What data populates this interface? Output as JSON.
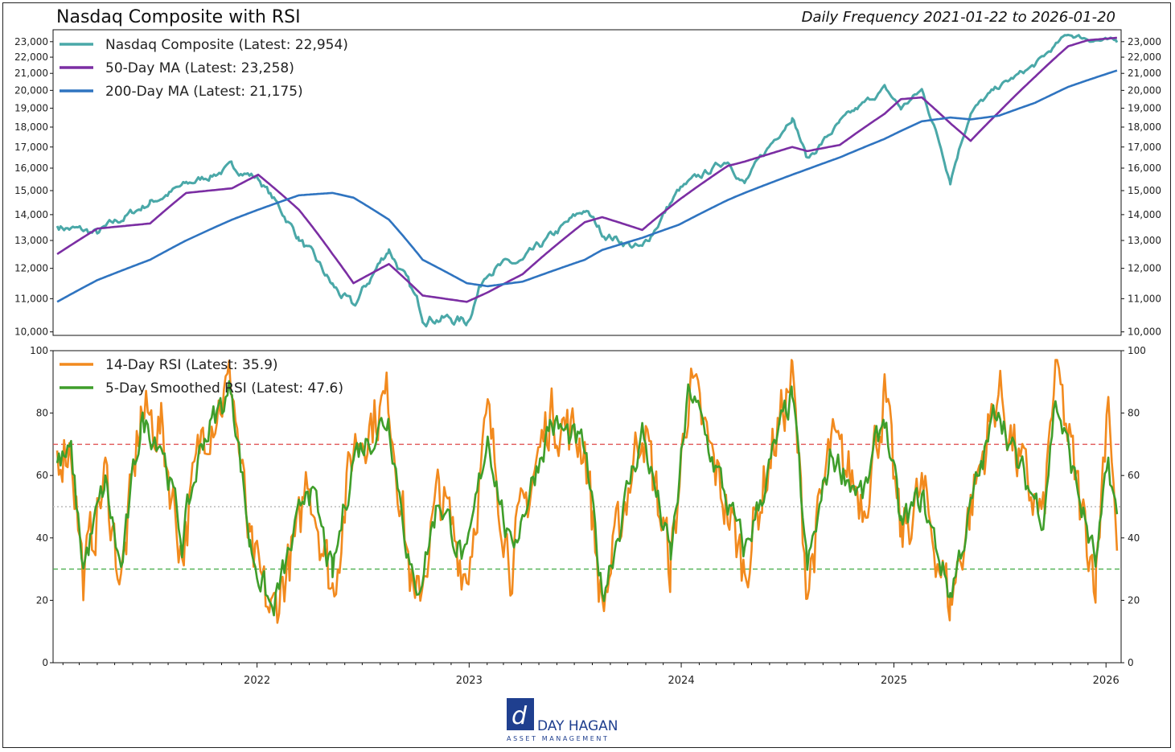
{
  "header": {
    "title": "Nasdaq Composite with RSI",
    "subtitle": "Daily Frequency 2021-01-22 to 2026-01-20"
  },
  "logo": {
    "name": "DAY HAGAN",
    "tagline": "ASSET MANAGEMENT",
    "color": "#1f3f8f"
  },
  "chart_data": [
    {
      "type": "line",
      "title": "Nasdaq Composite with RSI",
      "ylim": [
        9900,
        23800
      ],
      "yticks": [
        10000,
        11000,
        12000,
        13000,
        14000,
        15000,
        16000,
        17000,
        18000,
        19000,
        20000,
        21000,
        22000,
        23000
      ],
      "ytick_labels": [
        "10,000",
        "11,000",
        "12,000",
        "13,000",
        "14,000",
        "15,000",
        "16,000",
        "17,000",
        "18,000",
        "19,000",
        "20,000",
        "21,000",
        "22,000",
        "23,000"
      ],
      "legend_position": "top-left",
      "grid": false,
      "x": [
        "2021-01-22",
        "2021-04-01",
        "2021-07-01",
        "2021-09-01",
        "2021-11-19",
        "2022-01-03",
        "2022-03-14",
        "2022-05-11",
        "2022-06-16",
        "2022-08-16",
        "2022-10-13",
        "2022-12-28",
        "2023-02-02",
        "2023-04-03",
        "2023-07-19",
        "2023-08-18",
        "2023-10-26",
        "2023-12-28",
        "2024-03-21",
        "2024-04-19",
        "2024-07-10",
        "2024-08-05",
        "2024-09-30",
        "2024-12-16",
        "2025-01-13",
        "2025-02-18",
        "2025-04-08",
        "2025-05-13",
        "2025-07-01",
        "2025-09-01",
        "2025-10-28",
        "2025-12-01",
        "2026-01-20"
      ],
      "series": [
        {
          "name": "Nasdaq Composite (Latest: 22,954)",
          "color": "#4aa8a8",
          "values": [
            13550,
            13250,
            14500,
            15250,
            16050,
            15550,
            13100,
            11400,
            10700,
            12700,
            10500,
            10300,
            12000,
            12200,
            14200,
            13300,
            12650,
            15000,
            16400,
            15300,
            18600,
            16400,
            18200,
            20100,
            19000,
            20000,
            15500,
            18800,
            20200,
            21500,
            23500,
            23200,
            22954
          ]
        },
        {
          "name": "50-Day MA (Latest: 23,258)",
          "color": "#7b2ea3",
          "values": [
            12500,
            13450,
            13650,
            14900,
            15100,
            15700,
            14200,
            12500,
            11500,
            12150,
            11100,
            10900,
            11200,
            11800,
            13700,
            13900,
            13400,
            14600,
            16100,
            16300,
            17000,
            16800,
            17100,
            18700,
            19500,
            19600,
            18200,
            17300,
            18800,
            20800,
            22700,
            23100,
            23258
          ]
        },
        {
          "name": "200-Day MA (Latest: 21,175)",
          "color": "#2f74c0",
          "values": [
            10900,
            11600,
            12300,
            13000,
            13800,
            14200,
            14800,
            14900,
            14700,
            13800,
            12300,
            11500,
            11400,
            11550,
            12300,
            12650,
            13100,
            13600,
            14600,
            14900,
            15700,
            15950,
            16500,
            17400,
            17800,
            18300,
            18500,
            18400,
            18600,
            19300,
            20200,
            20600,
            21175
          ]
        }
      ]
    },
    {
      "type": "line",
      "ylim": [
        0,
        100
      ],
      "yticks": [
        0,
        20,
        40,
        60,
        80,
        100
      ],
      "ytick_labels": [
        "0",
        "20",
        "40",
        "60",
        "80",
        "100"
      ],
      "xtick_labels": [
        "2022",
        "2023",
        "2024",
        "2025",
        "2026"
      ],
      "xtick_dates": [
        "2022-01-01",
        "2023-01-01",
        "2024-01-01",
        "2025-01-01",
        "2026-01-01"
      ],
      "reference_lines": [
        {
          "value": 70,
          "color": "#e05555",
          "style": "dashed"
        },
        {
          "value": 50,
          "color": "#bbbbbb",
          "style": "dotted"
        },
        {
          "value": 30,
          "color": "#4caf50",
          "style": "dashed"
        }
      ],
      "legend_position": "top-left",
      "grid": false,
      "x": [
        "2021-01-22",
        "2021-02-15",
        "2021-03-08",
        "2021-04-15",
        "2021-05-12",
        "2021-06-15",
        "2021-07-20",
        "2021-08-25",
        "2021-09-30",
        "2021-11-19",
        "2021-12-20",
        "2022-01-27",
        "2022-03-14",
        "2022-03-29",
        "2022-05-11",
        "2022-06-16",
        "2022-08-16",
        "2022-09-30",
        "2022-11-10",
        "2022-12-28",
        "2023-02-02",
        "2023-03-13",
        "2023-05-20",
        "2023-07-19",
        "2023-08-18",
        "2023-10-26",
        "2023-12-14",
        "2024-01-15",
        "2024-04-19",
        "2024-05-28",
        "2024-07-10",
        "2024-08-05",
        "2024-09-15",
        "2024-11-11",
        "2024-12-16",
        "2025-01-13",
        "2025-02-18",
        "2025-04-08",
        "2025-05-13",
        "2025-06-30",
        "2025-08-01",
        "2025-09-15",
        "2025-10-06",
        "2025-11-20",
        "2025-12-15",
        "2026-01-05",
        "2026-01-20"
      ],
      "series": [
        {
          "name": "14-Day RSI (Latest: 35.9)",
          "color": "#f28a1e",
          "values": [
            68,
            70,
            27,
            60,
            25,
            80,
            75,
            35,
            75,
            90,
            35,
            15,
            42,
            62,
            23,
            70,
            85,
            15,
            55,
            28,
            78,
            32,
            80,
            70,
            17,
            78,
            30,
            90,
            30,
            62,
            92,
            24,
            70,
            52,
            85,
            40,
            55,
            19,
            50,
            88,
            65,
            45,
            95,
            48,
            28,
            90,
            35.9
          ]
        },
        {
          "name": "5-Day Smoothed RSI (Latest: 47.6)",
          "color": "#3f9e2b",
          "values": [
            64,
            66,
            31,
            57,
            29,
            77,
            72,
            39,
            72,
            88,
            38,
            16,
            45,
            60,
            27,
            67,
            79,
            20,
            53,
            31,
            74,
            35,
            77,
            68,
            22,
            74,
            33,
            88,
            35,
            60,
            86,
            29,
            67,
            53,
            80,
            43,
            53,
            22,
            49,
            84,
            63,
            48,
            85,
            50,
            31,
            63,
            47.6
          ]
        }
      ]
    }
  ]
}
